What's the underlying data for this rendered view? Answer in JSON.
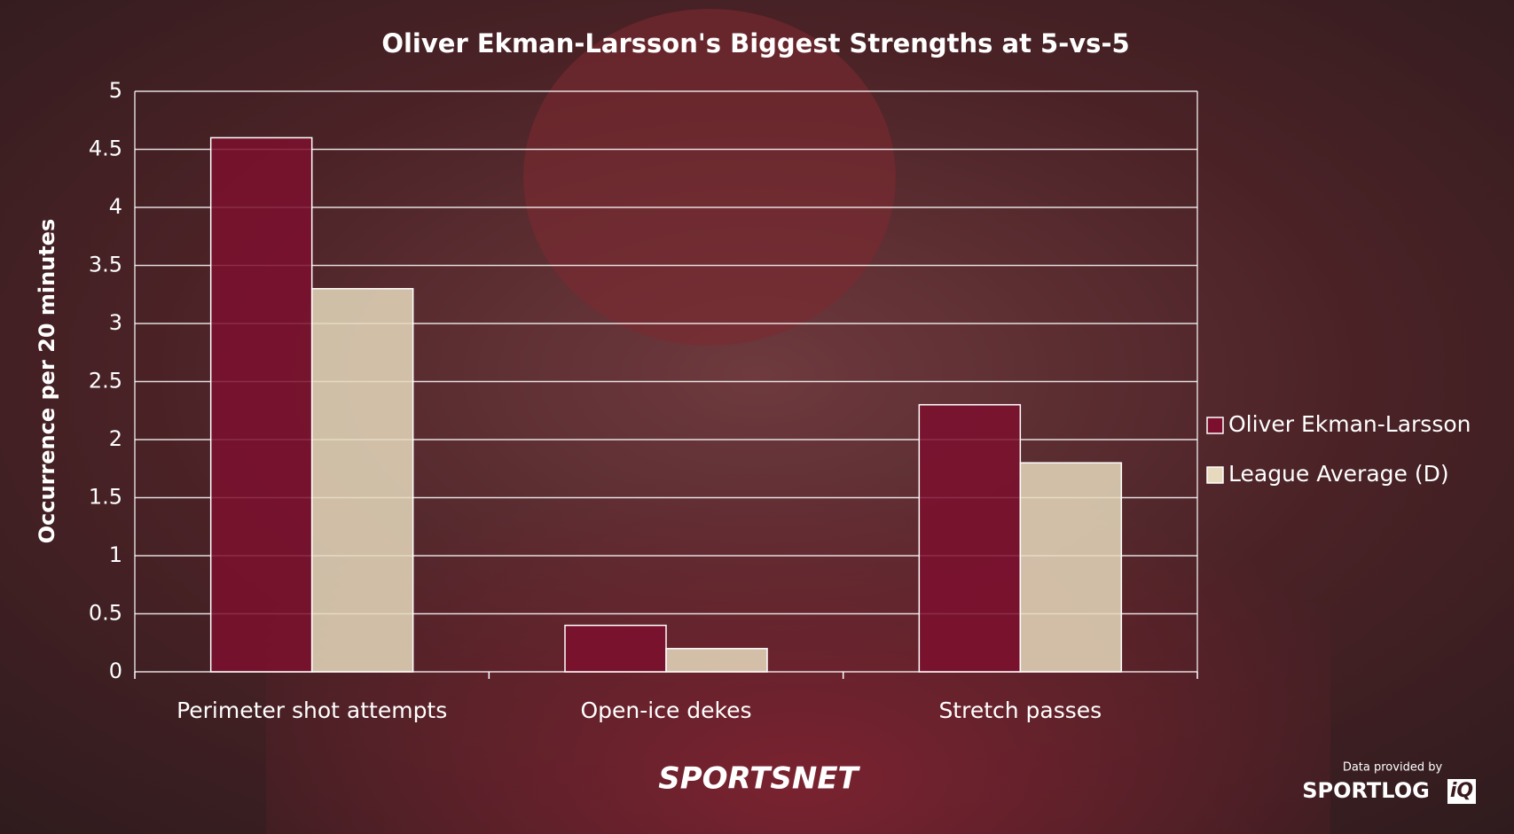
{
  "chart_data": {
    "type": "bar",
    "title": "Oliver Ekman-Larsson's Biggest Strengths at 5-vs-5",
    "y_label": "Occurrence per 20 minutes",
    "categories": [
      "Perimeter shot attempts",
      "Open-ice dekes",
      "Stretch passes"
    ],
    "series": [
      {
        "name": "Oliver Ekman-Larsson",
        "color": "#7d0f2e",
        "values": [
          4.6,
          0.4,
          2.3
        ]
      },
      {
        "name": "League Average (D)",
        "color": "#e6d9bd",
        "values": [
          3.3,
          0.2,
          1.8
        ]
      }
    ],
    "ylim": [
      0,
      5
    ],
    "yticks": [
      0,
      0.5,
      1,
      1.5,
      2,
      2.5,
      3,
      3.5,
      4,
      4.5,
      5
    ],
    "grid": true,
    "legend": "right"
  },
  "footer": {
    "brand": "SPORTSNET",
    "credit": "Data provided by",
    "provider": "SPORTLOG",
    "provider_mark": "iQ"
  }
}
